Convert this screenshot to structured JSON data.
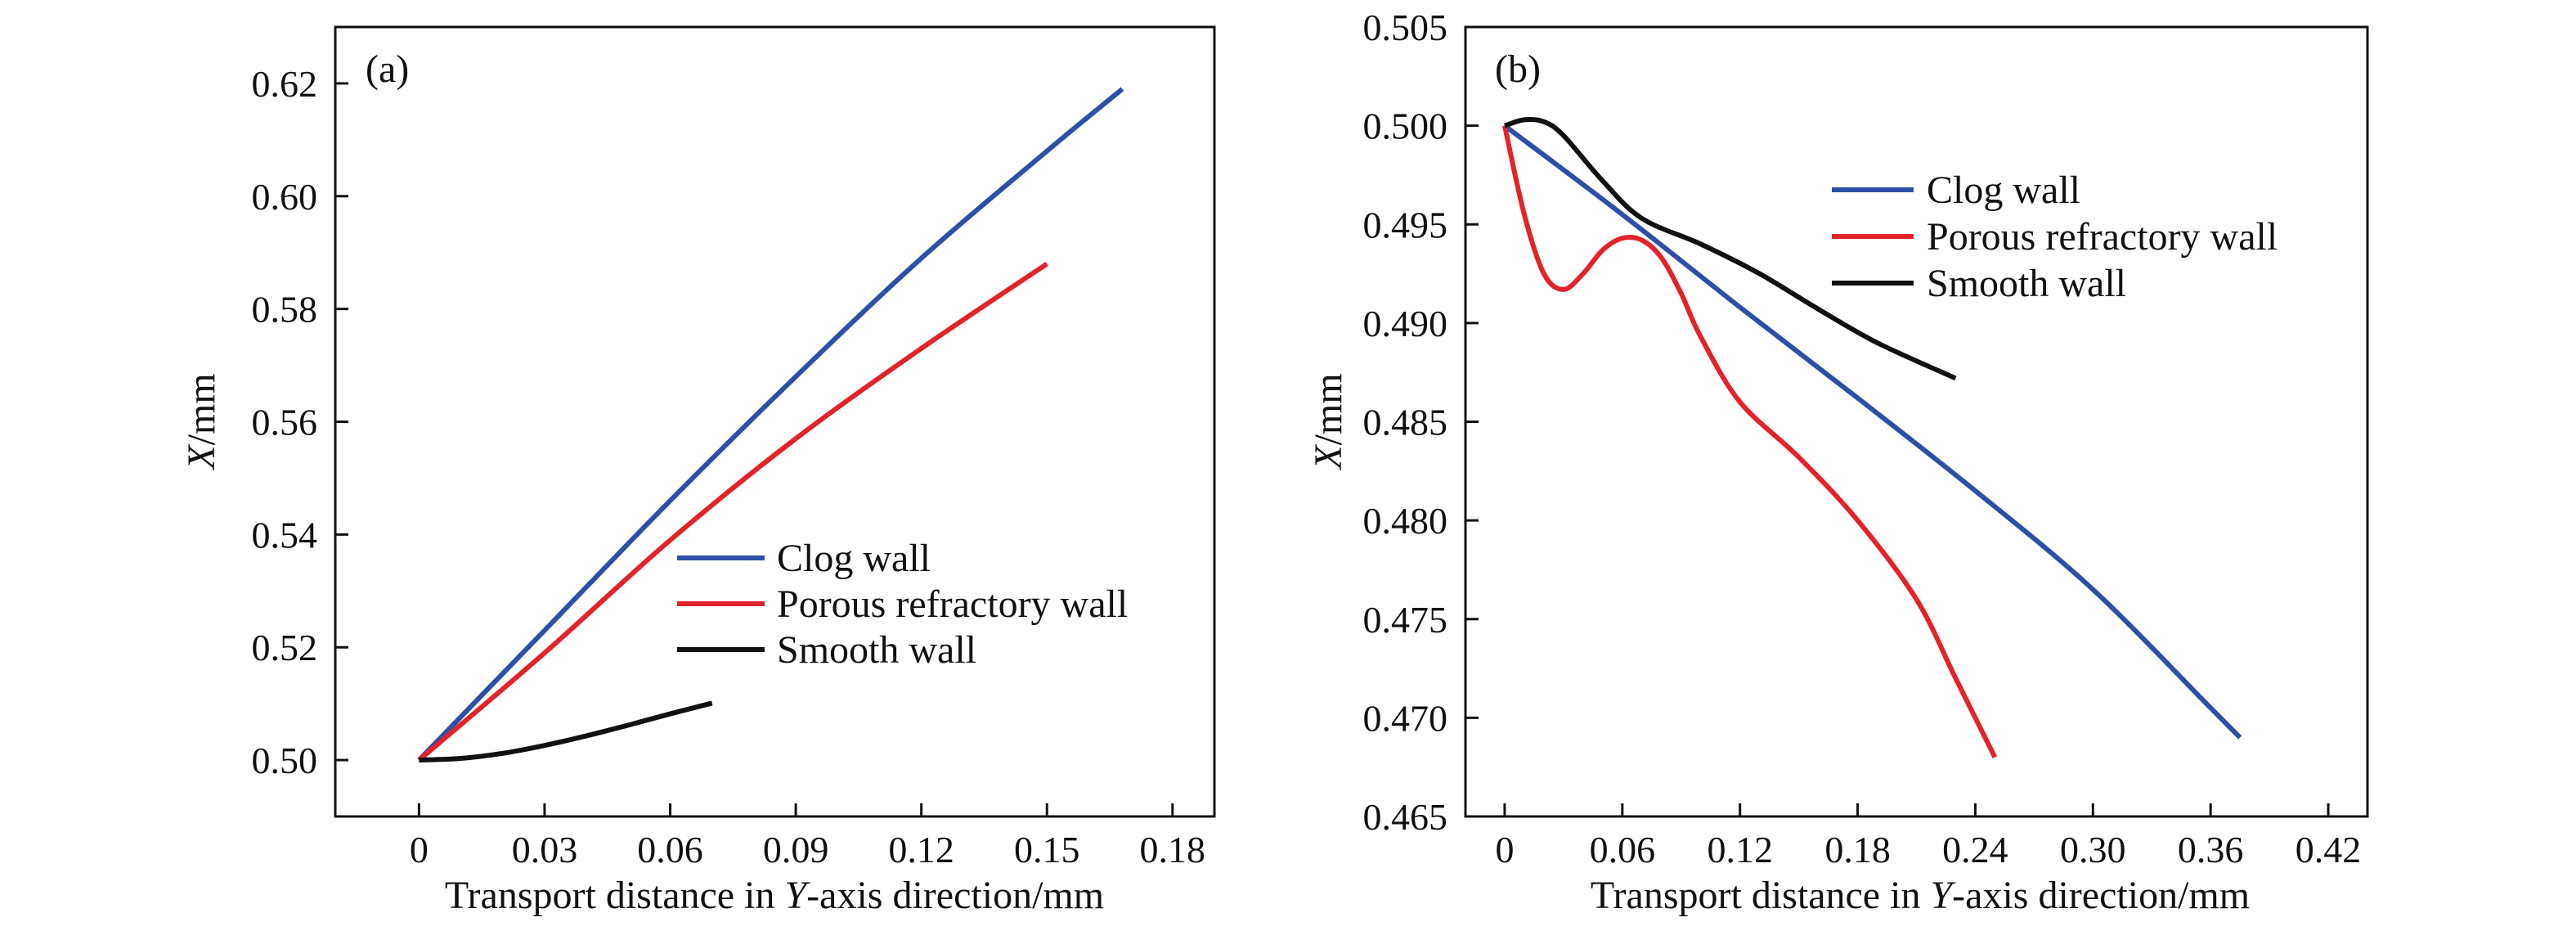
{
  "chart_data": [
    {
      "type": "line",
      "panel_label": "(a)",
      "xlabel_parts": [
        "Transport distance in ",
        "Y",
        "-axis direction/mm"
      ],
      "ylabel_parts": [
        "X",
        "/mm"
      ],
      "xlim": [
        -0.02,
        0.19
      ],
      "ylim": [
        0.49,
        0.63
      ],
      "xticks": [
        0,
        0.03,
        0.06,
        0.09,
        0.12,
        0.15,
        0.18
      ],
      "xtick_labels": [
        "0",
        "0.03",
        "0.06",
        "0.09",
        "0.12",
        "0.15",
        "0.18"
      ],
      "yticks": [
        0.5,
        0.52,
        0.54,
        0.56,
        0.58,
        0.6,
        0.62
      ],
      "ytick_labels": [
        "0.50",
        "0.52",
        "0.54",
        "0.56",
        "0.58",
        "0.60",
        "0.62"
      ],
      "grid": false,
      "legend_position": "lower-right",
      "series": [
        {
          "name": "Clog wall",
          "color": "#2e4fa8",
          "x": [
            0,
            0.03,
            0.06,
            0.09,
            0.12,
            0.15,
            0.168
          ],
          "y": [
            0.5,
            0.523,
            0.546,
            0.568,
            0.589,
            0.608,
            0.619
          ]
        },
        {
          "name": "Porous refractory wall",
          "color": "#e3232a",
          "x": [
            0,
            0.03,
            0.06,
            0.09,
            0.12,
            0.15
          ],
          "y": [
            0.5,
            0.519,
            0.539,
            0.557,
            0.573,
            0.588
          ]
        },
        {
          "name": "Smooth wall",
          "color": "#111111",
          "x": [
            0,
            0.01,
            0.02,
            0.03,
            0.04,
            0.05,
            0.06,
            0.07
          ],
          "y": [
            0.5,
            0.5003,
            0.5012,
            0.5026,
            0.5043,
            0.5062,
            0.5082,
            0.5101
          ]
        }
      ]
    },
    {
      "type": "line",
      "panel_label": "(b)",
      "xlabel_parts": [
        "Transport distance in ",
        "Y",
        "-axis direction/mm"
      ],
      "ylabel_parts": [
        "X",
        "/mm"
      ],
      "xlim": [
        -0.02,
        0.44
      ],
      "ylim": [
        0.465,
        0.505
      ],
      "xticks": [
        0,
        0.06,
        0.12,
        0.18,
        0.24,
        0.3,
        0.36,
        0.42
      ],
      "xtick_labels": [
        "0",
        "0.06",
        "0.12",
        "0.18",
        "0.24",
        "0.30",
        "0.36",
        "0.42"
      ],
      "yticks": [
        0.465,
        0.47,
        0.475,
        0.48,
        0.485,
        0.49,
        0.495,
        0.5,
        0.505
      ],
      "ytick_labels": [
        "0.465",
        "0.470",
        "0.475",
        "0.480",
        "0.485",
        "0.490",
        "0.495",
        "0.500",
        "0.505"
      ],
      "grid": false,
      "legend_position": "upper-right",
      "series": [
        {
          "name": "Clog wall",
          "color": "#2e4fa8",
          "x": [
            0,
            0.06,
            0.12,
            0.18,
            0.24,
            0.3,
            0.36,
            0.375
          ],
          "y": [
            0.5,
            0.4955,
            0.4908,
            0.4862,
            0.4815,
            0.4765,
            0.4705,
            0.469
          ]
        },
        {
          "name": "Porous refractory wall",
          "color": "#e3232a",
          "x": [
            0,
            0.01,
            0.02,
            0.03,
            0.04,
            0.05,
            0.06,
            0.07,
            0.08,
            0.09,
            0.1,
            0.12,
            0.15,
            0.18,
            0.21,
            0.23,
            0.25
          ],
          "y": [
            0.5,
            0.4955,
            0.4925,
            0.4917,
            0.4925,
            0.4937,
            0.4943,
            0.4942,
            0.4933,
            0.4915,
            0.4893,
            0.486,
            0.4832,
            0.48,
            0.476,
            0.472,
            0.468
          ]
        },
        {
          "name": "Smooth wall",
          "color": "#111111",
          "x": [
            0,
            0.01,
            0.02,
            0.03,
            0.05,
            0.07,
            0.1,
            0.13,
            0.16,
            0.19,
            0.23
          ],
          "y": [
            0.5,
            0.5003,
            0.5002,
            0.4995,
            0.4972,
            0.4953,
            0.494,
            0.4925,
            0.4907,
            0.489,
            0.4872
          ]
        }
      ]
    }
  ]
}
